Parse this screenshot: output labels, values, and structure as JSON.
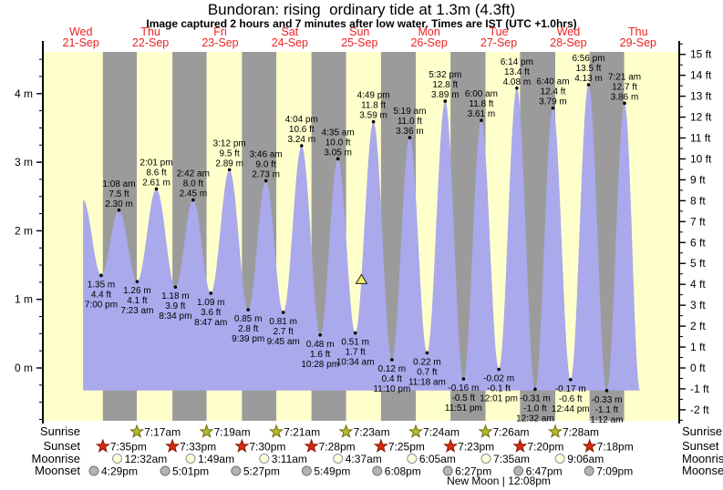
{
  "title": "Bundoran: rising  ordinary tide at 1.3m (4.3ft)",
  "subtitle": "Image captured 2 hours and 7 minutes after low water. Times are IST (UTC +1.0hrs)",
  "chart_data": {
    "type": "area",
    "x_axis_days": [
      {
        "weekday": "Wed",
        "date": "21-Sep"
      },
      {
        "weekday": "Thu",
        "date": "22-Sep"
      },
      {
        "weekday": "Fri",
        "date": "23-Sep"
      },
      {
        "weekday": "Sat",
        "date": "24-Sep"
      },
      {
        "weekday": "Sun",
        "date": "25-Sep"
      },
      {
        "weekday": "Mon",
        "date": "26-Sep"
      },
      {
        "weekday": "Tue",
        "date": "27-Sep"
      },
      {
        "weekday": "Wed",
        "date": "28-Sep"
      },
      {
        "weekday": "Thu",
        "date": "29-Sep"
      }
    ],
    "y_axis_left": {
      "unit": "m",
      "major_ticks": [
        0,
        1,
        2,
        3,
        4
      ],
      "minor_step": 0.25,
      "minor_range": [
        -0.75,
        4.5
      ]
    },
    "y_axis_right": {
      "unit": "ft",
      "major_ticks": [
        -2,
        -1,
        0,
        1,
        2,
        3,
        4,
        5,
        6,
        7,
        8,
        9,
        10,
        11,
        12,
        13,
        14,
        15
      ],
      "minor_step": 0.5,
      "minor_range": [
        -2.5,
        15.5
      ]
    },
    "tide_extremes": [
      {
        "day": 0,
        "time": "7:00 pm",
        "type": "low",
        "m": "1.35",
        "ft": "4.4"
      },
      {
        "day": 1,
        "time": "1:08 am",
        "type": "high",
        "m": "2.30",
        "ft": "7.5"
      },
      {
        "day": 1,
        "time": "7:23 am",
        "type": "low",
        "m": "1.26",
        "ft": "4.1"
      },
      {
        "day": 1,
        "time": "2:01 pm",
        "type": "high",
        "m": "2.61",
        "ft": "8.6"
      },
      {
        "day": 1,
        "time": "8:34 pm",
        "type": "low",
        "m": "1.18",
        "ft": "3.9"
      },
      {
        "day": 2,
        "time": "2:42 am",
        "type": "high",
        "m": "2.45",
        "ft": "8.0"
      },
      {
        "day": 2,
        "time": "8:47 am",
        "type": "low",
        "m": "1.09",
        "ft": "3.6"
      },
      {
        "day": 2,
        "time": "3:12 pm",
        "type": "high",
        "m": "2.89",
        "ft": "9.5"
      },
      {
        "day": 2,
        "time": "9:39 pm",
        "type": "low",
        "m": "0.85",
        "ft": "2.8"
      },
      {
        "day": 3,
        "time": "3:46 am",
        "type": "high",
        "m": "2.73",
        "ft": "9.0"
      },
      {
        "day": 3,
        "time": "9:45 am",
        "type": "low",
        "m": "0.81",
        "ft": "2.7"
      },
      {
        "day": 3,
        "time": "4:04 pm",
        "type": "high",
        "m": "3.24",
        "ft": "10.6"
      },
      {
        "day": 3,
        "time": "10:28 pm",
        "type": "low",
        "m": "0.48",
        "ft": "1.6"
      },
      {
        "day": 4,
        "time": "4:35 am",
        "type": "high",
        "m": "3.05",
        "ft": "10.0"
      },
      {
        "day": 4,
        "time": "10:34 am",
        "type": "low",
        "m": "0.51",
        "ft": "1.7"
      },
      {
        "day": 4,
        "time": "4:49 pm",
        "type": "high",
        "m": "3.59",
        "ft": "11.8"
      },
      {
        "day": 4,
        "time": "11:10 pm",
        "type": "low",
        "m": "0.12",
        "ft": "0.4"
      },
      {
        "day": 5,
        "time": "5:19 am",
        "type": "high",
        "m": "3.36",
        "ft": "11.0"
      },
      {
        "day": 5,
        "time": "11:18 am",
        "type": "low",
        "m": "0.22",
        "ft": "0.7"
      },
      {
        "day": 5,
        "time": "5:32 pm",
        "type": "high",
        "m": "3.89",
        "ft": "12.8"
      },
      {
        "day": 5,
        "time": "11:51 pm",
        "type": "low",
        "m": "-0.16",
        "ft": "-0.5"
      },
      {
        "day": 6,
        "time": "6:00 am",
        "type": "high",
        "m": "3.61",
        "ft": "11.8"
      },
      {
        "day": 6,
        "time": "12:01 pm",
        "type": "low",
        "m": "-0.02",
        "ft": "-0.1"
      },
      {
        "day": 6,
        "time": "6:14 pm",
        "type": "high",
        "m": "4.08",
        "ft": "13.4"
      },
      {
        "day": 7,
        "time": "12:32 am",
        "type": "low",
        "m": "-0.31",
        "ft": "-1.0"
      },
      {
        "day": 7,
        "time": "6:40 am",
        "type": "high",
        "m": "3.79",
        "ft": "12.4"
      },
      {
        "day": 7,
        "time": "12:44 pm",
        "type": "low",
        "m": "-0.17",
        "ft": "-0.6"
      },
      {
        "day": 7,
        "time": "6:56 pm",
        "type": "high",
        "m": "4.13",
        "ft": "13.5"
      },
      {
        "day": 8,
        "time": "1:12 am",
        "type": "low",
        "m": "-0.33",
        "ft": "-1.1"
      },
      {
        "day": 8,
        "time": "7:21 am",
        "type": "high",
        "m": "3.86",
        "ft": "12.7"
      }
    ],
    "curve_start": {
      "day": 0,
      "time": "12:45 pm",
      "m": "2.45"
    },
    "curve_end": {
      "day": 8,
      "time": "12:40 pm",
      "m": "-0.33"
    },
    "current_position": {
      "day": 4,
      "time": "12:41 pm",
      "m": "1.29"
    }
  },
  "astro": {
    "sunrise": {
      "label": "Sunrise",
      "events": [
        {
          "day": 1,
          "time": "7:17am"
        },
        {
          "day": 2,
          "time": "7:19am"
        },
        {
          "day": 3,
          "time": "7:21am"
        },
        {
          "day": 4,
          "time": "7:23am"
        },
        {
          "day": 5,
          "time": "7:24am"
        },
        {
          "day": 6,
          "time": "7:26am"
        },
        {
          "day": 7,
          "time": "7:28am"
        }
      ]
    },
    "sunset": {
      "label": "Sunset",
      "events": [
        {
          "day": 0,
          "time": "7:35pm"
        },
        {
          "day": 1,
          "time": "7:33pm"
        },
        {
          "day": 2,
          "time": "7:30pm"
        },
        {
          "day": 3,
          "time": "7:28pm"
        },
        {
          "day": 4,
          "time": "7:25pm"
        },
        {
          "day": 5,
          "time": "7:23pm"
        },
        {
          "day": 6,
          "time": "7:20pm"
        },
        {
          "day": 7,
          "time": "7:18pm"
        }
      ]
    },
    "moonrise": {
      "label": "Moonrise",
      "events": [
        {
          "day": 1,
          "time": "12:32am"
        },
        {
          "day": 2,
          "time": "1:49am"
        },
        {
          "day": 3,
          "time": "3:11am"
        },
        {
          "day": 4,
          "time": "4:37am"
        },
        {
          "day": 5,
          "time": "6:05am"
        },
        {
          "day": 6,
          "time": "7:35am"
        },
        {
          "day": 7,
          "time": "9:06am"
        }
      ]
    },
    "moonset": {
      "label": "Moonset",
      "events": [
        {
          "day": 0,
          "time": "4:29pm"
        },
        {
          "day": 1,
          "time": "5:01pm"
        },
        {
          "day": 2,
          "time": "5:27pm"
        },
        {
          "day": 3,
          "time": "5:49pm"
        },
        {
          "day": 4,
          "time": "6:08pm"
        },
        {
          "day": 5,
          "time": "6:27pm"
        },
        {
          "day": 6,
          "time": "6:47pm"
        },
        {
          "day": 7,
          "time": "7:09pm"
        }
      ]
    },
    "new_moon": {
      "label": "New Moon | 12:08pm",
      "day": 6,
      "time": "12:08pm"
    }
  },
  "colors": {
    "day_band": "#ffffcc",
    "night_band": "#9b9b9b",
    "tide_fill": "#a9a9ec",
    "date_red": "#ee2222",
    "axis": "#000000",
    "sunrise_marker": "#b8b838",
    "sunrise_marker_stroke": "#6f6f08",
    "sunset_marker": "#d62b0d",
    "sunset_marker_stroke": "#8a1500",
    "moonrise_marker": "#ffffd9",
    "moonrise_marker_stroke": "#8f8f8f",
    "moonset_marker": "#b4b4b4",
    "moonset_marker_stroke": "#747474",
    "current_marker": "#eeee66",
    "current_marker_stroke": "#222222"
  }
}
